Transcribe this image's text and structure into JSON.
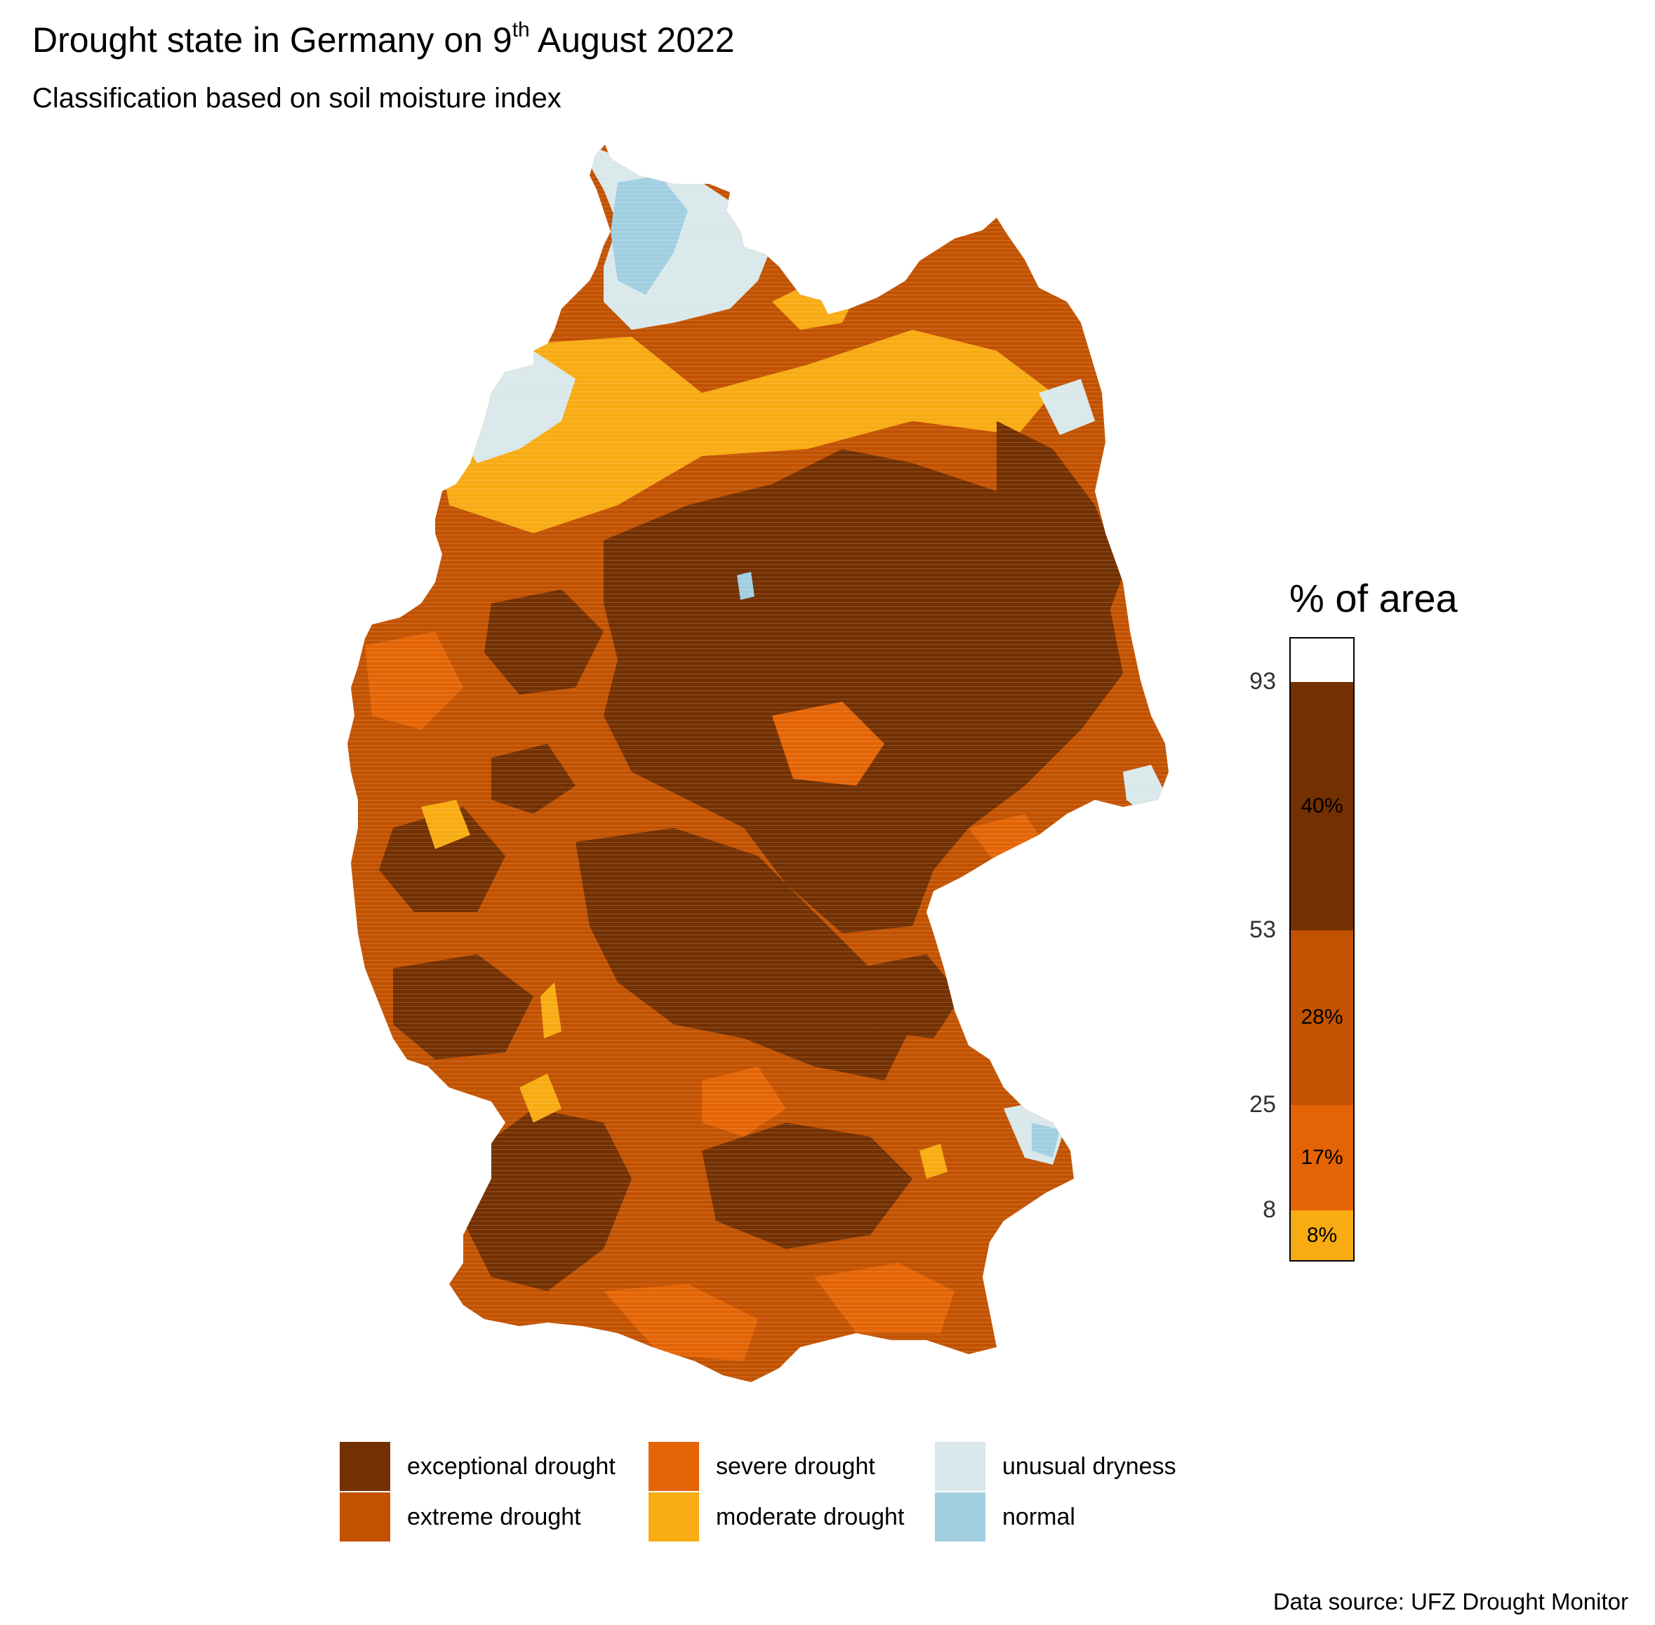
{
  "title": {
    "prefix": "Drought state in Germany on ",
    "day": "9",
    "day_suffix": "th",
    "rest": " August 2022"
  },
  "subtitle": "Classification based on soil moisture index",
  "colors": {
    "exceptional": "#733000",
    "extreme": "#c25200",
    "severe": "#e46405",
    "moderate": "#f8ab12",
    "unusual": "#d9e8ea",
    "normal": "#a1cfe1"
  },
  "legend": [
    {
      "key": "exceptional",
      "label": "exceptional drought"
    },
    {
      "key": "extreme",
      "label": "extreme drought"
    },
    {
      "key": "severe",
      "label": "severe drought"
    },
    {
      "key": "moderate",
      "label": "moderate drought"
    },
    {
      "key": "unusual",
      "label": "unusual dryness"
    },
    {
      "key": "normal",
      "label": "normal"
    }
  ],
  "area_bar": {
    "title": "% of area",
    "segments": [
      {
        "key": "moderate",
        "percent": 8,
        "label": "8%"
      },
      {
        "key": "severe",
        "percent": 17,
        "label": "17%"
      },
      {
        "key": "extreme",
        "percent": 28,
        "label": "28%"
      },
      {
        "key": "exceptional",
        "percent": 40,
        "label": "40%"
      }
    ],
    "ticks": [
      "8",
      "25",
      "53",
      "93"
    ]
  },
  "source": "Data source: UFZ Drought Monitor"
}
